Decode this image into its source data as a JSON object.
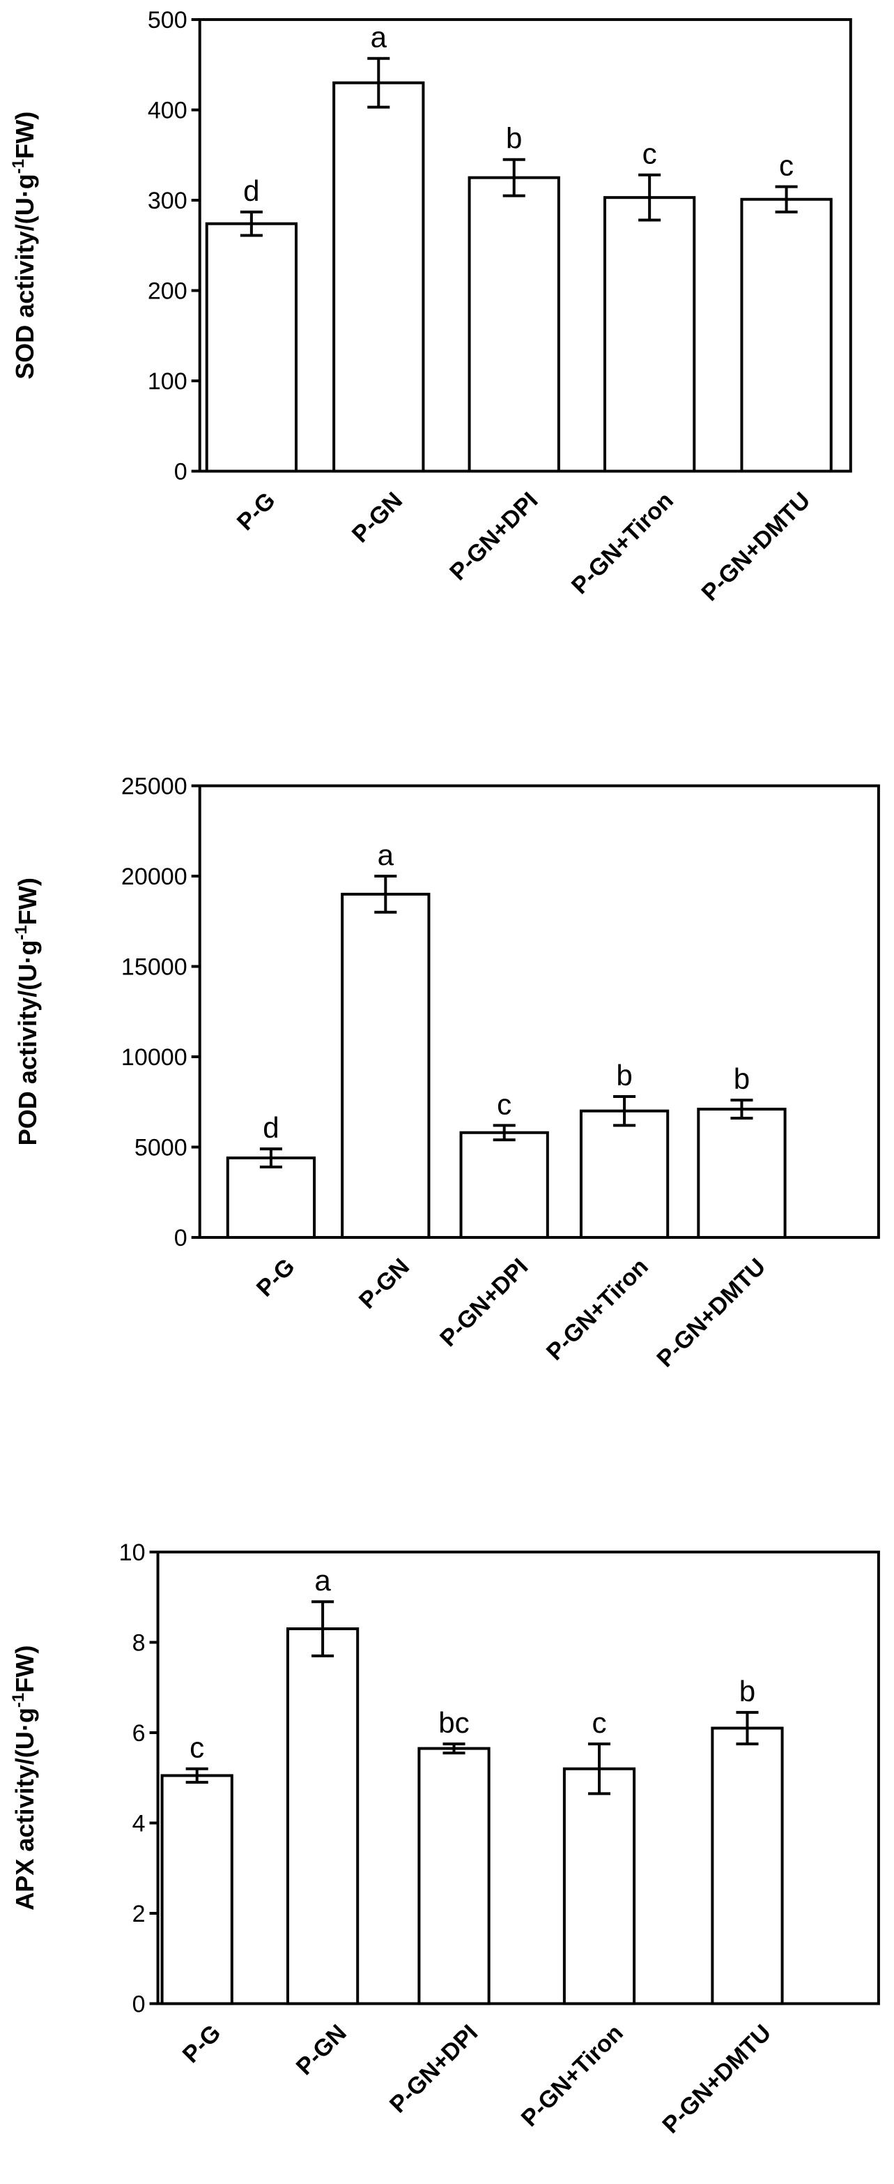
{
  "chart_data": [
    {
      "type": "bar",
      "y_label": {
        "main": "SOD activity/(U·g",
        "sup": "-1",
        "end": "FW)"
      },
      "categories": [
        "P-G",
        "P-GN",
        "P-GN+DPI",
        "P-GN+Tiron",
        "P-GN+DMTU"
      ],
      "values": [
        274,
        430,
        325,
        303,
        301
      ],
      "errors": [
        13,
        27,
        20,
        25,
        14
      ],
      "annotations": [
        "d",
        "a",
        "b",
        "c",
        "c"
      ],
      "color": "#ffffff",
      "ylim": [
        0,
        500
      ],
      "yticks": [
        0,
        100,
        200,
        300,
        400,
        500
      ]
    },
    {
      "type": "bar",
      "y_label": {
        "main": "POD activity/(U·g",
        "sup": "-1",
        "end": "FW)"
      },
      "categories": [
        "P-G",
        "P-GN",
        "P-GN+DPI",
        "P-GN+Tiron",
        "P-GN+DMTU"
      ],
      "values": [
        4400,
        19000,
        5800,
        7000,
        7100
      ],
      "errors": [
        500,
        1000,
        400,
        800,
        500
      ],
      "annotations": [
        "d",
        "a",
        "c",
        "b",
        "b"
      ],
      "color": "#ffffff",
      "ylim": [
        0,
        25000
      ],
      "yticks": [
        0,
        5000,
        10000,
        15000,
        20000,
        25000
      ]
    },
    {
      "type": "bar",
      "y_label": {
        "main": "APX activity/(U·g",
        "sup": "-1",
        "end": "FW)"
      },
      "categories": [
        "P-G",
        "P-GN",
        "P-GN+DPI",
        "P-GN+Tiron",
        "P-GN+DMTU"
      ],
      "values": [
        5.05,
        8.3,
        5.65,
        5.2,
        6.1
      ],
      "errors": [
        0.15,
        0.6,
        0.1,
        0.55,
        0.35
      ],
      "annotations": [
        "c",
        "a",
        "bc",
        "c",
        "b"
      ],
      "color": "#ffffff",
      "ylim": [
        0,
        10
      ],
      "yticks": [
        0,
        2,
        4,
        6,
        8,
        10
      ]
    }
  ]
}
